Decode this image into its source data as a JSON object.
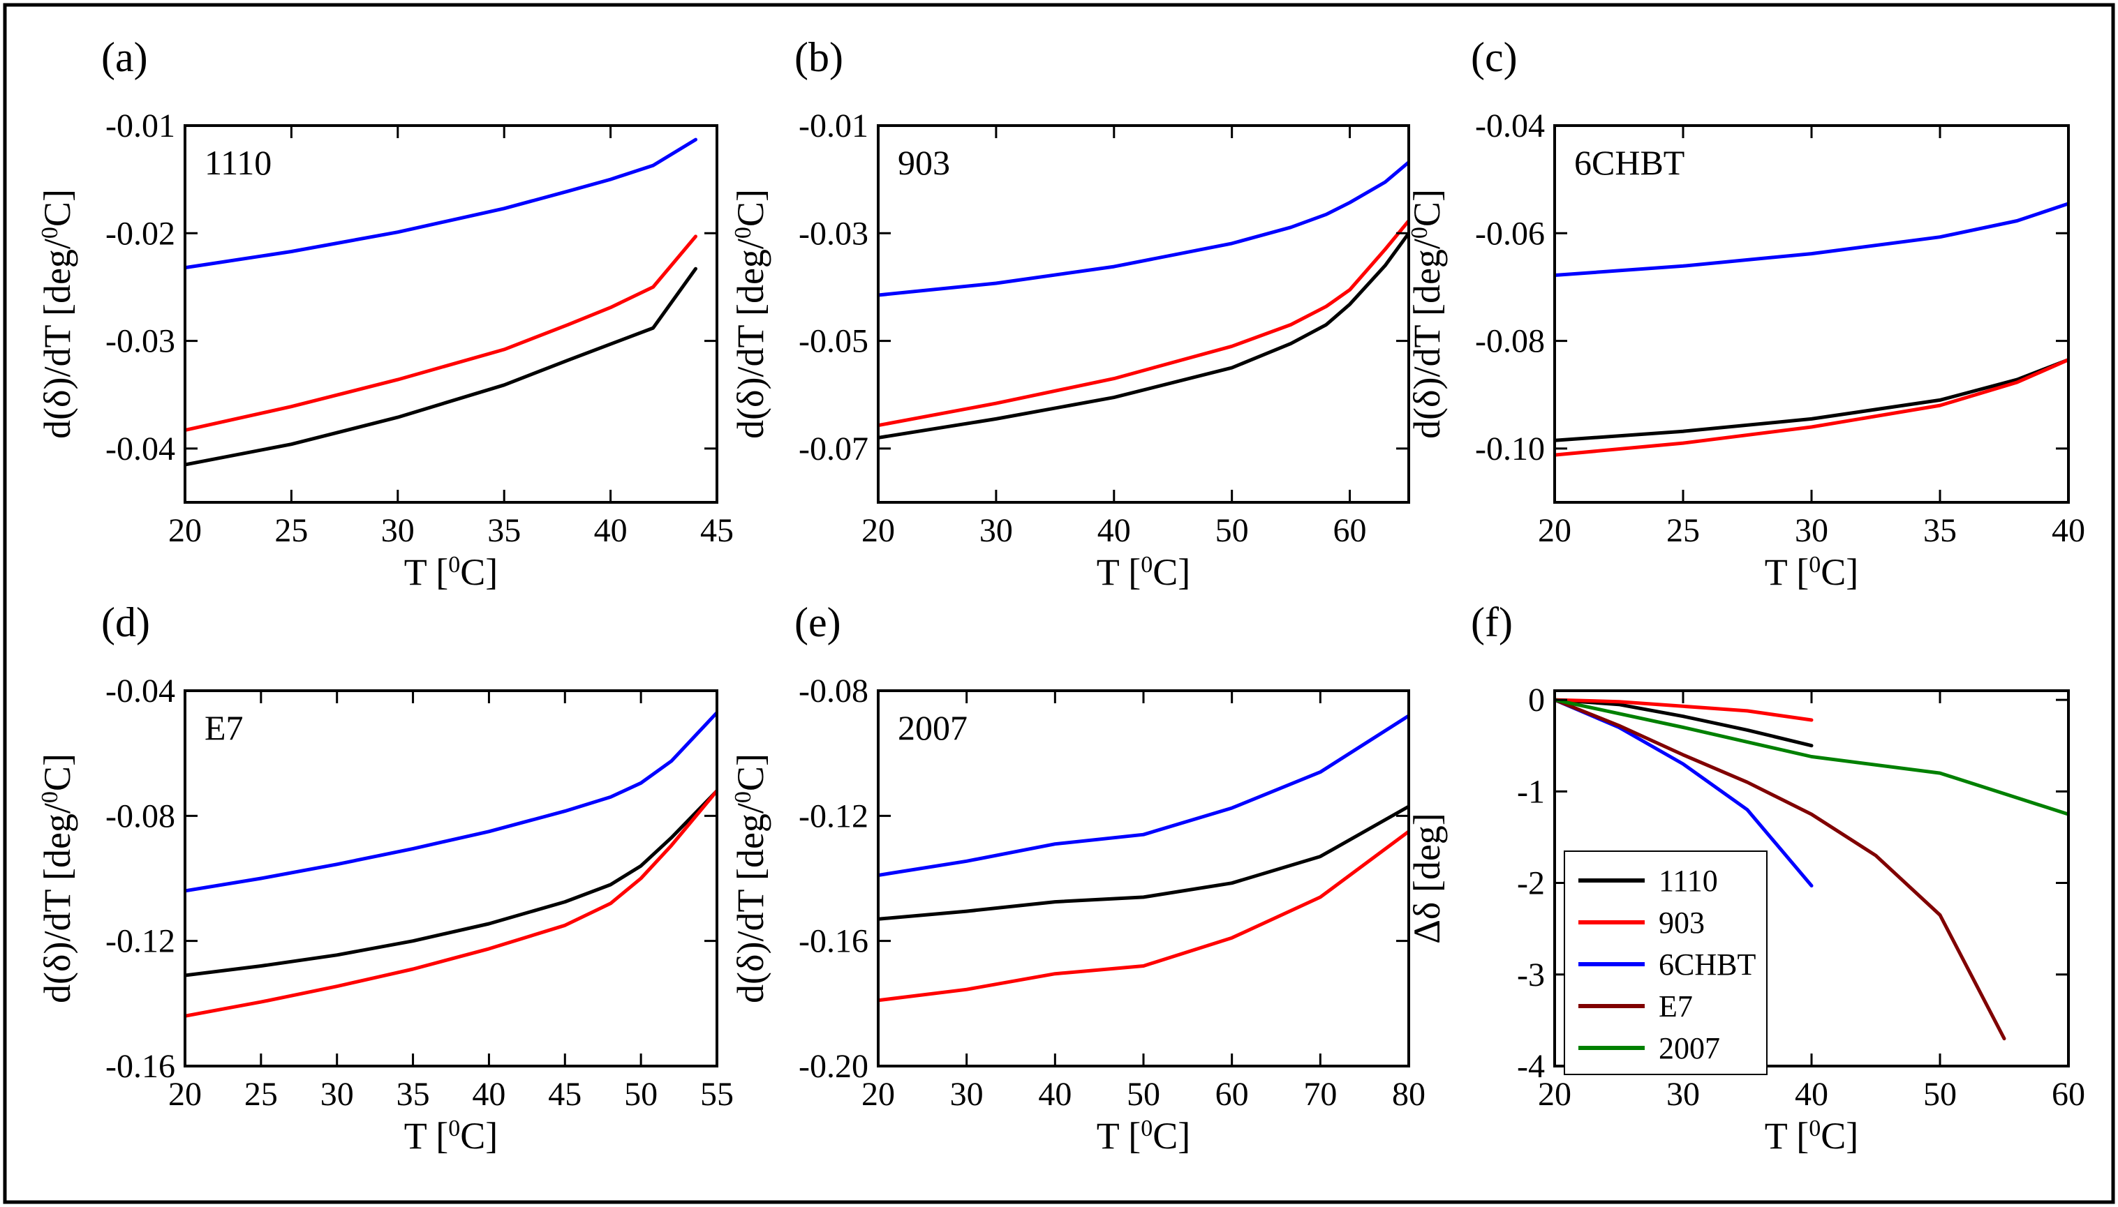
{
  "figure": {
    "colors": {
      "black": "#000000",
      "red": "#ff0000",
      "blue": "#0000ff",
      "maroon": "#800000",
      "green": "#008000"
    }
  },
  "chart_data": [
    {
      "type": "line",
      "tag": "(a)",
      "panel_label": "1110",
      "xlabel": "T [°C]",
      "ylabel": "d(δ)/dT [deg/°C]",
      "xlim": [
        20,
        45
      ],
      "ylim": [
        -0.045,
        -0.01
      ],
      "xticks": [
        20,
        25,
        30,
        35,
        40,
        45
      ],
      "xtick_labels": [
        "20",
        "25",
        "30",
        "35",
        "40",
        "45"
      ],
      "yticks": [
        -0.01,
        -0.02,
        -0.03,
        -0.04
      ],
      "ytick_labels": [
        "-0.01",
        "-0.02",
        "-0.03",
        "-0.04"
      ],
      "series": [
        {
          "color": "blue",
          "x": [
            20,
            25,
            30,
            35,
            38,
            40,
            42,
            44
          ],
          "y": [
            -0.0232,
            -0.0217,
            -0.0199,
            -0.0177,
            -0.0161,
            -0.015,
            -0.0137,
            -0.0113
          ]
        },
        {
          "color": "red",
          "x": [
            20,
            25,
            30,
            35,
            38,
            40,
            42,
            44
          ],
          "y": [
            -0.0383,
            -0.0361,
            -0.0336,
            -0.0308,
            -0.0285,
            -0.0269,
            -0.025,
            -0.0203
          ]
        },
        {
          "color": "black",
          "x": [
            20,
            25,
            30,
            35,
            38,
            40,
            42,
            44
          ],
          "y": [
            -0.0415,
            -0.0396,
            -0.0371,
            -0.0341,
            -0.0318,
            -0.0303,
            -0.0288,
            -0.0233
          ]
        }
      ]
    },
    {
      "type": "line",
      "tag": "(b)",
      "panel_label": "903",
      "xlabel": "T [°C]",
      "ylabel": "d(δ)/dT [deg/°C]",
      "xlim": [
        20,
        65
      ],
      "ylim": [
        -0.08,
        -0.01
      ],
      "xticks": [
        20,
        30,
        40,
        50,
        60
      ],
      "xtick_labels": [
        "20",
        "30",
        "40",
        "50",
        "60"
      ],
      "yticks": [
        -0.01,
        -0.03,
        -0.05,
        -0.07
      ],
      "ytick_labels": [
        "-0.01",
        "-0.03",
        "-0.05",
        "-0.07"
      ],
      "series": [
        {
          "color": "blue",
          "x": [
            20,
            30,
            40,
            50,
            55,
            58,
            60,
            63,
            65
          ],
          "y": [
            -0.0415,
            -0.0393,
            -0.0362,
            -0.0319,
            -0.0289,
            -0.0265,
            -0.0243,
            -0.0205,
            -0.0168
          ]
        },
        {
          "color": "red",
          "x": [
            20,
            30,
            40,
            50,
            55,
            58,
            60,
            63,
            65
          ],
          "y": [
            -0.0657,
            -0.0616,
            -0.057,
            -0.051,
            -0.047,
            -0.0436,
            -0.0405,
            -0.033,
            -0.0277
          ]
        },
        {
          "color": "black",
          "x": [
            20,
            30,
            40,
            50,
            55,
            58,
            60,
            63,
            65
          ],
          "y": [
            -0.068,
            -0.0645,
            -0.0605,
            -0.055,
            -0.0505,
            -0.047,
            -0.0432,
            -0.036,
            -0.03
          ]
        }
      ]
    },
    {
      "type": "line",
      "tag": "(c)",
      "panel_label": "6CHBT",
      "xlabel": "T [°C]",
      "ylabel": "d(δ)/dT [deg/°C]",
      "xlim": [
        20,
        40
      ],
      "ylim": [
        -0.11,
        -0.04
      ],
      "xticks": [
        20,
        25,
        30,
        35,
        40
      ],
      "xtick_labels": [
        "20",
        "25",
        "30",
        "35",
        "40"
      ],
      "yticks": [
        -0.04,
        -0.06,
        -0.08,
        -0.1
      ],
      "ytick_labels": [
        "-0.04",
        "-0.06",
        "-0.08",
        "-0.10"
      ],
      "series": [
        {
          "color": "blue",
          "x": [
            20,
            25,
            30,
            35,
            38,
            40
          ],
          "y": [
            -0.0678,
            -0.0661,
            -0.0638,
            -0.0607,
            -0.0577,
            -0.0545
          ]
        },
        {
          "color": "black",
          "x": [
            20,
            25,
            30,
            35,
            38,
            40
          ],
          "y": [
            -0.0985,
            -0.0968,
            -0.0945,
            -0.091,
            -0.0872,
            -0.0835
          ]
        },
        {
          "color": "red",
          "x": [
            20,
            25,
            30,
            35,
            38,
            40
          ],
          "y": [
            -0.1012,
            -0.099,
            -0.096,
            -0.092,
            -0.0877,
            -0.0835
          ]
        }
      ]
    },
    {
      "type": "line",
      "tag": "(d)",
      "panel_label": "E7",
      "xlabel": "T [°C]",
      "ylabel": "d(δ)/dT [deg/°C]",
      "xlim": [
        20,
        55
      ],
      "ylim": [
        -0.16,
        -0.04
      ],
      "xticks": [
        20,
        25,
        30,
        35,
        40,
        45,
        50,
        55
      ],
      "xtick_labels": [
        "20",
        "25",
        "30",
        "35",
        "40",
        "45",
        "50",
        "55"
      ],
      "yticks": [
        -0.04,
        -0.08,
        -0.12,
        -0.16
      ],
      "ytick_labels": [
        "-0.04",
        "-0.08",
        "-0.12",
        "-0.16"
      ],
      "series": [
        {
          "color": "blue",
          "x": [
            20,
            25,
            30,
            35,
            40,
            45,
            48,
            50,
            52,
            55
          ],
          "y": [
            -0.104,
            -0.1,
            -0.0955,
            -0.0905,
            -0.085,
            -0.0785,
            -0.074,
            -0.0695,
            -0.0625,
            -0.047
          ]
        },
        {
          "color": "black",
          "x": [
            20,
            25,
            30,
            35,
            40,
            45,
            48,
            50,
            52,
            55
          ],
          "y": [
            -0.131,
            -0.128,
            -0.1245,
            -0.12,
            -0.1145,
            -0.1075,
            -0.102,
            -0.096,
            -0.087,
            -0.072
          ]
        },
        {
          "color": "red",
          "x": [
            20,
            25,
            30,
            35,
            40,
            45,
            48,
            50,
            52,
            55
          ],
          "y": [
            -0.144,
            -0.1395,
            -0.1345,
            -0.129,
            -0.1225,
            -0.115,
            -0.108,
            -0.1,
            -0.0895,
            -0.072
          ]
        }
      ]
    },
    {
      "type": "line",
      "tag": "(e)",
      "panel_label": "2007",
      "xlabel": "T [°C]",
      "ylabel": "d(δ)/dT [deg/°C]",
      "xlim": [
        20,
        80
      ],
      "ylim": [
        -0.2,
        -0.08
      ],
      "xticks": [
        20,
        30,
        40,
        50,
        60,
        70,
        80
      ],
      "xtick_labels": [
        "20",
        "30",
        "40",
        "50",
        "60",
        "70",
        "80"
      ],
      "yticks": [
        -0.08,
        -0.12,
        -0.16,
        -0.2
      ],
      "ytick_labels": [
        "-0.08",
        "-0.12",
        "-0.16",
        "-0.20"
      ],
      "series": [
        {
          "color": "blue",
          "x": [
            20,
            30,
            40,
            50,
            60,
            70,
            80
          ],
          "y": [
            -0.139,
            -0.1345,
            -0.129,
            -0.126,
            -0.1175,
            -0.106,
            -0.088
          ]
        },
        {
          "color": "black",
          "x": [
            20,
            30,
            40,
            50,
            60,
            70,
            80
          ],
          "y": [
            -0.153,
            -0.1505,
            -0.1475,
            -0.146,
            -0.1415,
            -0.133,
            -0.117
          ]
        },
        {
          "color": "red",
          "x": [
            20,
            30,
            40,
            50,
            60,
            70,
            80
          ],
          "y": [
            -0.179,
            -0.1755,
            -0.1705,
            -0.168,
            -0.159,
            -0.146,
            -0.125
          ]
        }
      ]
    },
    {
      "type": "line",
      "tag": "(f)",
      "xlabel": "T [°C]",
      "ylabel": "Δδ [deg]",
      "xlim": [
        20,
        60
      ],
      "ylim": [
        -4,
        0.1
      ],
      "xticks": [
        20,
        30,
        40,
        50,
        60
      ],
      "xtick_labels": [
        "20",
        "30",
        "40",
        "50",
        "60"
      ],
      "yticks": [
        0,
        -1,
        -2,
        -3,
        -4
      ],
      "ytick_labels": [
        "0",
        "-1",
        "-2",
        "-3",
        "-4"
      ],
      "legend": {
        "placement": "bottom-left"
      },
      "series": [
        {
          "name": "1110",
          "color": "black",
          "x": [
            20,
            25,
            30,
            35,
            40
          ],
          "y": [
            0,
            -0.05,
            -0.18,
            -0.33,
            -0.5
          ]
        },
        {
          "name": "903",
          "color": "red",
          "x": [
            20,
            25,
            30,
            35,
            40
          ],
          "y": [
            0,
            -0.02,
            -0.07,
            -0.12,
            -0.22
          ]
        },
        {
          "name": "6CHBT",
          "color": "blue",
          "x": [
            20,
            25,
            30,
            35,
            40
          ],
          "y": [
            0,
            -0.3,
            -0.7,
            -1.2,
            -2.03
          ]
        },
        {
          "name": "E7",
          "color": "maroon",
          "x": [
            20,
            25,
            30,
            35,
            40,
            45,
            50,
            55
          ],
          "y": [
            0,
            -0.28,
            -0.6,
            -0.9,
            -1.25,
            -1.7,
            -2.35,
            -3.7
          ]
        },
        {
          "name": "2007",
          "color": "green",
          "x": [
            20,
            30,
            40,
            50,
            60
          ],
          "y": [
            0,
            -0.3,
            -0.62,
            -0.8,
            -1.25
          ]
        }
      ]
    }
  ]
}
